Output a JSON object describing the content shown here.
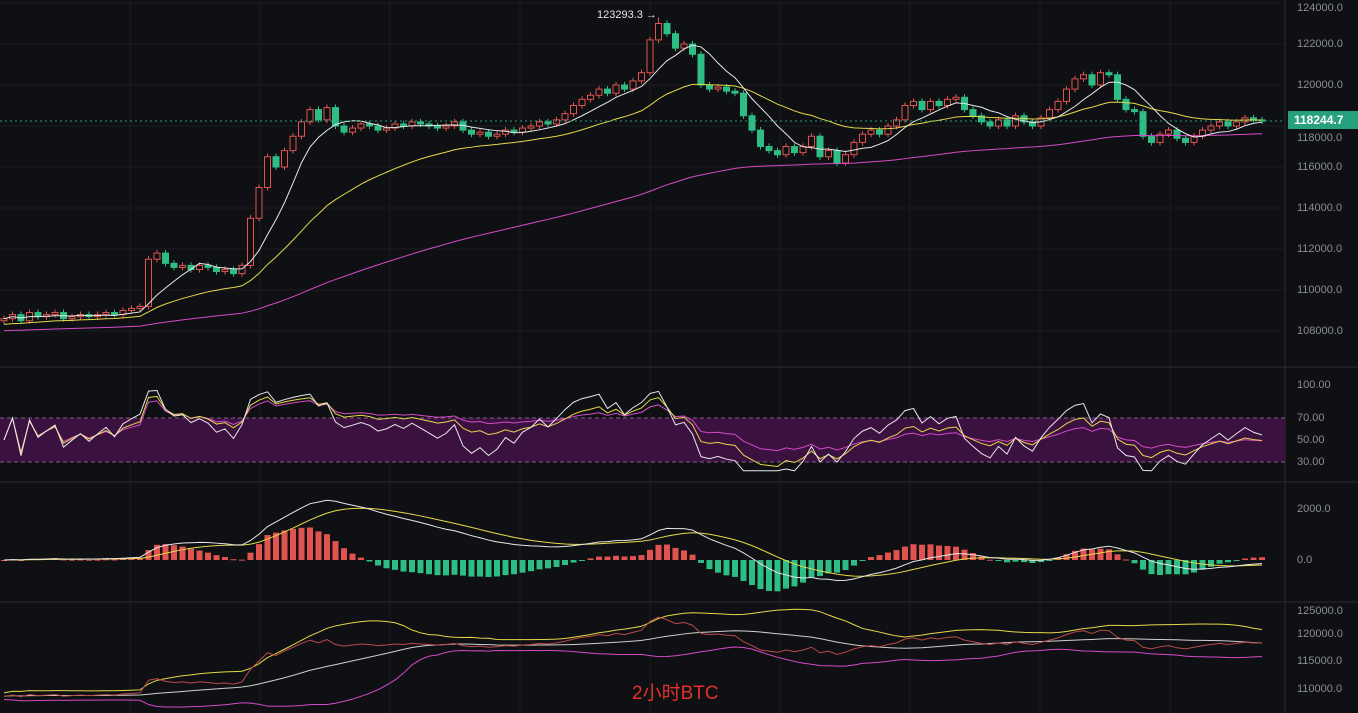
{
  "watermark": "2小时BTC",
  "high_marker": {
    "label": "123293.3 →"
  },
  "last_price": "118244.7",
  "colors": {
    "up": "#e0534e",
    "down": "#2ebd85",
    "ma_fast": "#e8e8e8",
    "ma_mid": "#e6d84a",
    "ma_slow": "#d64ac9",
    "rsi_band": "#3b1140",
    "price_tag": "#26a17b",
    "watermark": "#e3302a"
  },
  "axes": {
    "price": [
      "124000.0",
      "122000.0",
      "120000.0",
      "118000.0",
      "116000.0",
      "114000.0",
      "112000.0",
      "110000.0",
      "108000.0"
    ],
    "rsi": [
      "100.00",
      "70.00",
      "50.00",
      "30.00"
    ],
    "macd": [
      "2000.0",
      "0.0"
    ],
    "mini": [
      "125000.0",
      "120000.0",
      "115000.0",
      "110000.0"
    ]
  },
  "chart_data": {
    "type": "candlestick",
    "interval": "2h",
    "symbol": "BTC",
    "ylim": [
      107500,
      124200
    ],
    "closes": [
      108600,
      108800,
      108500,
      108900,
      108700,
      108800,
      108900,
      108600,
      108700,
      108800,
      108700,
      108800,
      108900,
      108800,
      109000,
      109100,
      109200,
      111500,
      111800,
      111300,
      111100,
      111200,
      111000,
      111200,
      111100,
      110900,
      111000,
      110800,
      111200,
      113500,
      115000,
      116500,
      116000,
      116800,
      117500,
      118200,
      118800,
      118300,
      118900,
      118000,
      117700,
      117900,
      118100,
      118000,
      117800,
      117900,
      118100,
      118000,
      118200,
      118100,
      118000,
      117900,
      118000,
      118200,
      117800,
      117600,
      117700,
      117500,
      117600,
      117800,
      117700,
      117900,
      118000,
      118200,
      118100,
      118300,
      118600,
      119000,
      119300,
      119500,
      119800,
      119600,
      120000,
      119800,
      120200,
      120600,
      122200,
      123000,
      122500,
      121800,
      122000,
      121500,
      120000,
      119800,
      119900,
      119700,
      119600,
      118500,
      117800,
      117000,
      116800,
      116600,
      117000,
      116700,
      117000,
      117500,
      116500,
      116800,
      116200,
      116600,
      117200,
      117600,
      117800,
      117600,
      118000,
      118300,
      119000,
      119200,
      118800,
      119200,
      119000,
      119300,
      119400,
      118800,
      118500,
      118200,
      118000,
      118300,
      118000,
      118500,
      118200,
      118000,
      118400,
      118800,
      119200,
      119800,
      120300,
      120500,
      120000,
      120600,
      120500,
      119300,
      118800,
      118700,
      117500,
      117200,
      117600,
      117800,
      117400,
      117200,
      117500,
      117800,
      118000,
      118200,
      118000,
      118200,
      118400,
      118300,
      118244.7
    ],
    "high": 123293.3,
    "last": 118244.7,
    "rsi_levels": [
      30,
      50,
      70
    ],
    "indicators": [
      "MA",
      "RSI",
      "MACD",
      "Bands"
    ]
  }
}
